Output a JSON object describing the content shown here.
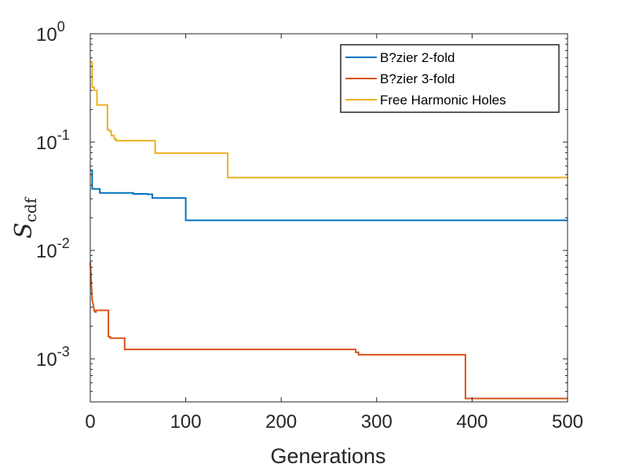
{
  "chart_data": {
    "type": "line",
    "title": "",
    "xlabel": "Generations",
    "ylabel": "S",
    "ylabel_subscript": "cdf",
    "xlim": [
      0,
      500
    ],
    "ylim": [
      0.0004,
      1
    ],
    "yscale": "log",
    "xticks": [
      0,
      100,
      200,
      300,
      400,
      500
    ],
    "xtick_labels": [
      "0",
      "100",
      "200",
      "300",
      "400",
      "500"
    ],
    "yticks": [
      {
        "value": 1,
        "base": "10",
        "exp": "0"
      },
      {
        "value": 0.1,
        "base": "10",
        "exp": "-1"
      },
      {
        "value": 0.01,
        "base": "10",
        "exp": "-2"
      },
      {
        "value": 0.001,
        "base": "10",
        "exp": "-3"
      }
    ],
    "legend_position": "top-right",
    "series": [
      {
        "name": "B?zier 2-fold",
        "color": "#0072BD",
        "x": [
          0,
          2,
          2,
          10,
          10,
          45,
          45,
          60,
          60,
          65,
          65,
          100,
          100,
          500
        ],
        "y": [
          0.055,
          0.055,
          0.037,
          0.037,
          0.034,
          0.034,
          0.0333,
          0.0333,
          0.033,
          0.033,
          0.0305,
          0.0305,
          0.019,
          0.019
        ]
      },
      {
        "name": "B?zier 3-fold",
        "color": "#D95319",
        "x": [
          0,
          2,
          3,
          4,
          5,
          6,
          6,
          19,
          19,
          21,
          21,
          36,
          36,
          278,
          278,
          281,
          281,
          393,
          393,
          500
        ],
        "y": [
          0.0078,
          0.0035,
          0.0032,
          0.0028,
          0.0027,
          0.0027,
          0.0028,
          0.0028,
          0.0016,
          0.0016,
          0.00155,
          0.00155,
          0.00122,
          0.00122,
          0.00115,
          0.00115,
          0.00109,
          0.00109,
          0.00043,
          0.00043
        ]
      },
      {
        "name": "Free Harmonic Holes",
        "color": "#EDB120",
        "x": [
          0,
          2,
          2,
          4,
          4,
          7,
          7,
          18,
          18,
          20,
          20,
          22,
          22,
          25,
          25,
          27,
          27,
          68,
          68,
          144,
          144,
          500
        ],
        "y": [
          0.55,
          0.55,
          0.32,
          0.32,
          0.3,
          0.3,
          0.22,
          0.22,
          0.13,
          0.13,
          0.127,
          0.127,
          0.115,
          0.115,
          0.107,
          0.107,
          0.103,
          0.103,
          0.079,
          0.079,
          0.047,
          0.047
        ]
      }
    ]
  }
}
